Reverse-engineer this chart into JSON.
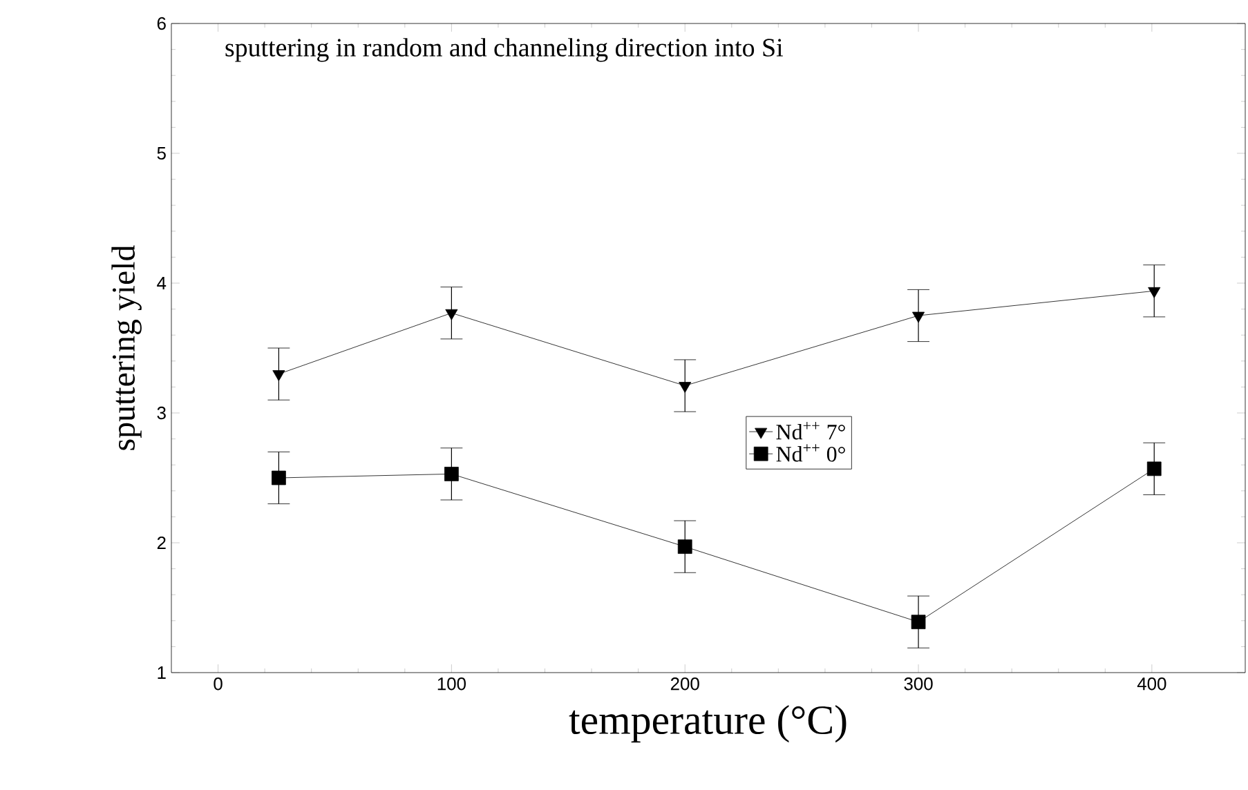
{
  "chart_data": {
    "type": "line",
    "title": "sputtering in random and channeling direction into Si",
    "xlabel": "temperature (°C)",
    "ylabel": "sputtering yield",
    "x": [
      26,
      100,
      200,
      300,
      401
    ],
    "series": [
      {
        "name": "Nd$^{++}$ 7°",
        "color": "#000000",
        "marker": "triangle",
        "values": [
          3.3,
          3.77,
          3.21,
          3.75,
          3.94
        ],
        "errors": [
          0.2,
          0.2,
          0.2,
          0.2,
          0.2
        ]
      },
      {
        "name": "Nd$^{++}$ 0°",
        "color": "#000000",
        "marker": "square",
        "values": [
          2.5,
          2.53,
          1.97,
          1.39,
          2.57
        ],
        "errors": [
          0.2,
          0.2,
          0.2,
          0.2,
          0.2
        ]
      }
    ],
    "xlim": [
      -20,
      440
    ],
    "ylim": [
      1,
      6
    ],
    "xticks": [
      0,
      100,
      200,
      300,
      400
    ],
    "yticks": [
      1,
      2,
      3,
      4,
      5,
      6
    ],
    "grid": false,
    "legend": "right",
    "line_style": "solid"
  }
}
